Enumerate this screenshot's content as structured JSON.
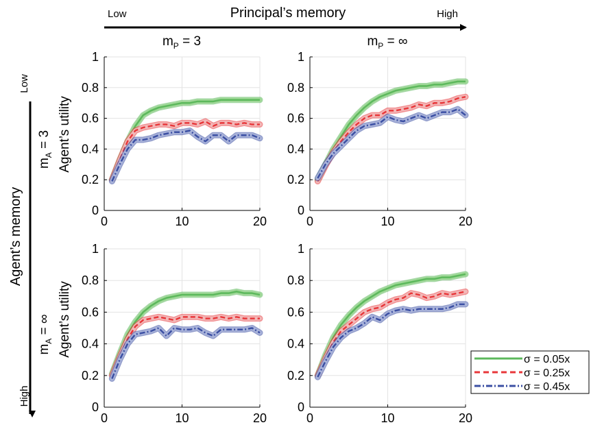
{
  "header": {
    "low_label": "Low",
    "title": "Principal’s memory",
    "high_label": "High"
  },
  "side": {
    "low_label": "Low",
    "title": "Agent’s memory",
    "high_label": "High"
  },
  "columns": [
    {
      "main": "m",
      "sub": "P",
      "rest": " = 3"
    },
    {
      "main": "m",
      "sub": "P",
      "rest": " = ∞"
    }
  ],
  "rows": [
    {
      "main": "m",
      "sub": "A",
      "rest": " = 3",
      "ylabel": "Agent’s utility"
    },
    {
      "main": "m",
      "sub": "A",
      "rest": " = ∞",
      "ylabel": "Agent’s utility"
    }
  ],
  "colors": {
    "green": "#5cb85c",
    "green_band": "#9fd896",
    "red": "#e8373a",
    "red_band": "#f2b8b8",
    "blue": "#3b4fa3",
    "blue_band": "#a9b3da"
  },
  "legend": [
    {
      "label": "σ = 0.05x",
      "style": "solid",
      "color": "#5cb85c"
    },
    {
      "label": "σ = 0.25x",
      "style": "dashed",
      "color": "#e8373a"
    },
    {
      "label": "σ = 0.45x",
      "style": "dashdot",
      "color": "#3b4fa3"
    }
  ],
  "chart_data": [
    {
      "type": "line",
      "x": [
        1,
        2,
        3,
        4,
        5,
        6,
        7,
        8,
        9,
        10,
        11,
        12,
        13,
        14,
        15,
        16,
        17,
        18,
        19,
        20
      ],
      "xlim": [
        0,
        20
      ],
      "ylim": [
        0,
        1
      ],
      "xticks": [
        "0",
        "10",
        "20"
      ],
      "yticks": [
        "0",
        "0.2",
        "0.4",
        "0.6",
        "0.8",
        "1"
      ],
      "ylabel": "Agent’s utility",
      "grid": true,
      "series": [
        {
          "name": "σ = 0.05x",
          "values": [
            0.2,
            0.33,
            0.45,
            0.55,
            0.62,
            0.65,
            0.67,
            0.68,
            0.69,
            0.7,
            0.7,
            0.71,
            0.71,
            0.71,
            0.72,
            0.72,
            0.72,
            0.72,
            0.72,
            0.72
          ]
        },
        {
          "name": "σ = 0.25x",
          "values": [
            0.2,
            0.33,
            0.45,
            0.52,
            0.54,
            0.55,
            0.56,
            0.56,
            0.55,
            0.57,
            0.57,
            0.56,
            0.58,
            0.55,
            0.57,
            0.57,
            0.56,
            0.57,
            0.56,
            0.56
          ]
        },
        {
          "name": "σ = 0.45x",
          "values": [
            0.19,
            0.3,
            0.4,
            0.46,
            0.46,
            0.47,
            0.49,
            0.5,
            0.51,
            0.51,
            0.52,
            0.48,
            0.45,
            0.49,
            0.49,
            0.45,
            0.49,
            0.49,
            0.49,
            0.47
          ]
        }
      ]
    },
    {
      "type": "line",
      "x": [
        1,
        2,
        3,
        4,
        5,
        6,
        7,
        8,
        9,
        10,
        11,
        12,
        13,
        14,
        15,
        16,
        17,
        18,
        19,
        20
      ],
      "xlim": [
        0,
        20
      ],
      "ylim": [
        0,
        1
      ],
      "xticks": [
        "0",
        "10",
        "20"
      ],
      "yticks": [
        "0",
        "0.2",
        "0.4",
        "0.6",
        "0.8",
        "1"
      ],
      "grid": true,
      "series": [
        {
          "name": "σ = 0.05x",
          "values": [
            0.2,
            0.3,
            0.4,
            0.48,
            0.56,
            0.62,
            0.67,
            0.71,
            0.74,
            0.76,
            0.78,
            0.79,
            0.8,
            0.81,
            0.81,
            0.82,
            0.82,
            0.83,
            0.84,
            0.84
          ]
        },
        {
          "name": "σ = 0.25x",
          "values": [
            0.19,
            0.29,
            0.38,
            0.45,
            0.51,
            0.56,
            0.6,
            0.62,
            0.62,
            0.65,
            0.65,
            0.66,
            0.67,
            0.69,
            0.68,
            0.7,
            0.7,
            0.71,
            0.73,
            0.74
          ]
        },
        {
          "name": "σ = 0.45x",
          "values": [
            0.21,
            0.3,
            0.37,
            0.42,
            0.47,
            0.52,
            0.55,
            0.56,
            0.57,
            0.61,
            0.59,
            0.58,
            0.6,
            0.62,
            0.6,
            0.62,
            0.64,
            0.64,
            0.66,
            0.62
          ]
        }
      ]
    },
    {
      "type": "line",
      "x": [
        1,
        2,
        3,
        4,
        5,
        6,
        7,
        8,
        9,
        10,
        11,
        12,
        13,
        14,
        15,
        16,
        17,
        18,
        19,
        20
      ],
      "xlim": [
        0,
        20
      ],
      "ylim": [
        0,
        1
      ],
      "xticks": [
        "0",
        "10",
        "20"
      ],
      "yticks": [
        "0",
        "0.2",
        "0.4",
        "0.6",
        "0.8",
        "1"
      ],
      "ylabel": "Agent’s utility",
      "grid": true,
      "series": [
        {
          "name": "σ = 0.05x",
          "values": [
            0.21,
            0.34,
            0.46,
            0.54,
            0.6,
            0.64,
            0.67,
            0.69,
            0.7,
            0.71,
            0.71,
            0.71,
            0.71,
            0.71,
            0.72,
            0.72,
            0.73,
            0.72,
            0.72,
            0.71
          ]
        },
        {
          "name": "σ = 0.25x",
          "values": [
            0.2,
            0.32,
            0.43,
            0.51,
            0.55,
            0.56,
            0.57,
            0.56,
            0.55,
            0.57,
            0.57,
            0.57,
            0.56,
            0.56,
            0.57,
            0.56,
            0.57,
            0.56,
            0.56,
            0.56
          ]
        },
        {
          "name": "σ = 0.45x",
          "values": [
            0.18,
            0.3,
            0.4,
            0.46,
            0.47,
            0.48,
            0.5,
            0.45,
            0.5,
            0.49,
            0.49,
            0.5,
            0.47,
            0.45,
            0.49,
            0.49,
            0.49,
            0.49,
            0.5,
            0.47
          ]
        }
      ]
    },
    {
      "type": "line",
      "x": [
        1,
        2,
        3,
        4,
        5,
        6,
        7,
        8,
        9,
        10,
        11,
        12,
        13,
        14,
        15,
        16,
        17,
        18,
        19,
        20
      ],
      "xlim": [
        0,
        20
      ],
      "ylim": [
        0,
        1
      ],
      "xticks": [
        "0",
        "10",
        "20"
      ],
      "yticks": [
        "0",
        "0.2",
        "0.4",
        "0.6",
        "0.8",
        "1"
      ],
      "grid": true,
      "series": [
        {
          "name": "σ = 0.05x",
          "values": [
            0.2,
            0.33,
            0.44,
            0.52,
            0.58,
            0.63,
            0.67,
            0.7,
            0.73,
            0.75,
            0.77,
            0.78,
            0.79,
            0.8,
            0.81,
            0.81,
            0.82,
            0.82,
            0.83,
            0.84
          ]
        },
        {
          "name": "σ = 0.25x",
          "values": [
            0.2,
            0.31,
            0.41,
            0.48,
            0.52,
            0.56,
            0.6,
            0.62,
            0.63,
            0.66,
            0.68,
            0.69,
            0.72,
            0.71,
            0.69,
            0.7,
            0.72,
            0.71,
            0.72,
            0.73
          ]
        },
        {
          "name": "σ = 0.45x",
          "values": [
            0.19,
            0.29,
            0.38,
            0.44,
            0.48,
            0.5,
            0.53,
            0.57,
            0.55,
            0.59,
            0.61,
            0.62,
            0.61,
            0.62,
            0.62,
            0.62,
            0.62,
            0.63,
            0.65,
            0.65
          ]
        }
      ]
    }
  ]
}
